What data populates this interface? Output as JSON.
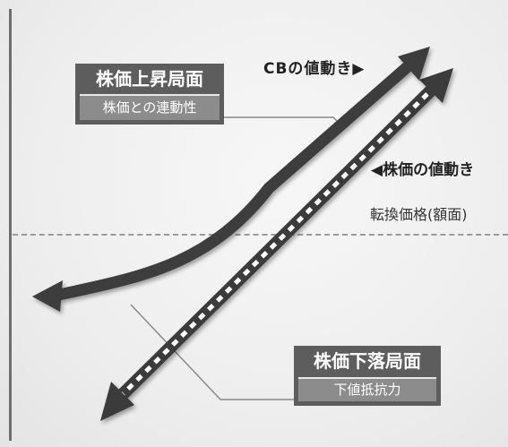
{
  "labels": {
    "cb_movement": "CBの値動き▶",
    "stock_movement": "◀株価の値動き",
    "conversion_price": "転換価格(額面)"
  },
  "up_phase": {
    "title": "株価上昇局面",
    "subtitle": "株価との連動性"
  },
  "down_phase": {
    "title": "株価下落局面",
    "subtitle": "下値抵抗力"
  },
  "colors": {
    "arrow_dark": "#3c3c3c",
    "box_title_bg": "#5d5d5d",
    "box_sub_bg": "#8c8c8c",
    "dashed_line": "#9a9a9a"
  }
}
